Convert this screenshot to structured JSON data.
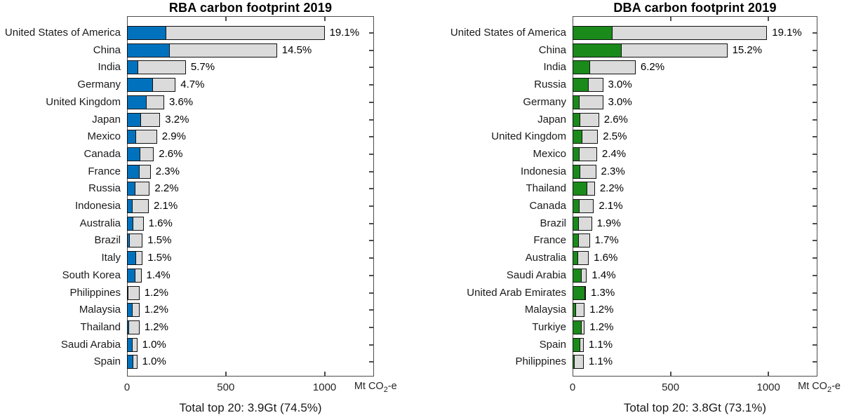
{
  "figure": {
    "background": "#ffffff",
    "bar_outline_color": "#111111",
    "remainder_fill_color": "#dbdbdb",
    "axis_color": "#4d4d4d"
  },
  "chart_data": [
    {
      "type": "bar",
      "orientation": "horizontal",
      "stacked": true,
      "title": "RBA carbon footprint 2019",
      "footer": "Total top 20: 3.9Gt (74.5%)",
      "xlabel": "Mt CO2-e",
      "xlabel_parts": [
        "Mt CO",
        "2",
        "-e"
      ],
      "xlim": [
        0,
        1250
      ],
      "x_ticks": [
        0,
        500,
        1000
      ],
      "grid": false,
      "highlight_color": "#0072BD",
      "remainder_color": "#dbdbdb",
      "series_note": "colored_mt = highlighted leading segment, total_mt = full bar length in Mt CO2-e",
      "rows": [
        {
          "label": "United States of America",
          "pct": "19.1%",
          "colored_mt": 196,
          "total_mt": 1000
        },
        {
          "label": "China",
          "pct": "14.5%",
          "colored_mt": 212,
          "total_mt": 759
        },
        {
          "label": "India",
          "pct": "5.7%",
          "colored_mt": 54,
          "total_mt": 298
        },
        {
          "label": "Germany",
          "pct": "4.7%",
          "colored_mt": 128,
          "total_mt": 246
        },
        {
          "label": "United Kingdom",
          "pct": "3.6%",
          "colored_mt": 96,
          "total_mt": 188
        },
        {
          "label": "Japan",
          "pct": "3.2%",
          "colored_mt": 68,
          "total_mt": 168
        },
        {
          "label": "Mexico",
          "pct": "2.9%",
          "colored_mt": 43,
          "total_mt": 152
        },
        {
          "label": "Canada",
          "pct": "2.6%",
          "colored_mt": 64,
          "total_mt": 136
        },
        {
          "label": "France",
          "pct": "2.3%",
          "colored_mt": 61,
          "total_mt": 120
        },
        {
          "label": "Russia",
          "pct": "2.2%",
          "colored_mt": 39,
          "total_mt": 115
        },
        {
          "label": "Indonesia",
          "pct": "2.1%",
          "colored_mt": 24,
          "total_mt": 110
        },
        {
          "label": "Australia",
          "pct": "1.6%",
          "colored_mt": 29,
          "total_mt": 84
        },
        {
          "label": "Brazil",
          "pct": "1.5%",
          "colored_mt": 12,
          "total_mt": 79
        },
        {
          "label": "Italy",
          "pct": "1.5%",
          "colored_mt": 43,
          "total_mt": 79
        },
        {
          "label": "South Korea",
          "pct": "1.4%",
          "colored_mt": 40,
          "total_mt": 73
        },
        {
          "label": "Philippines",
          "pct": "1.2%",
          "colored_mt": 5,
          "total_mt": 63
        },
        {
          "label": "Malaysia",
          "pct": "1.2%",
          "colored_mt": 25,
          "total_mt": 63
        },
        {
          "label": "Thailand",
          "pct": "1.2%",
          "colored_mt": 8,
          "total_mt": 63
        },
        {
          "label": "Saudi Arabia",
          "pct": "1.0%",
          "colored_mt": 24,
          "total_mt": 52
        },
        {
          "label": "Spain",
          "pct": "1.0%",
          "colored_mt": 28,
          "total_mt": 52
        }
      ]
    },
    {
      "type": "bar",
      "orientation": "horizontal",
      "stacked": true,
      "title": "DBA carbon footprint 2019",
      "footer": "Total top 20: 3.8Gt (73.1%)",
      "xlabel": "Mt CO2-e",
      "xlabel_parts": [
        "Mt CO",
        "2",
        "-e"
      ],
      "xlim": [
        0,
        1250
      ],
      "x_ticks": [
        0,
        500,
        1000
      ],
      "grid": false,
      "highlight_color": "#1a8a1a",
      "remainder_color": "#dbdbdb",
      "series_note": "colored_mt = highlighted leading segment, total_mt = full bar length in Mt CO2-e",
      "rows": [
        {
          "label": "United States of America",
          "pct": "19.1%",
          "colored_mt": 199,
          "total_mt": 993
        },
        {
          "label": "China",
          "pct": "15.2%",
          "colored_mt": 248,
          "total_mt": 790
        },
        {
          "label": "India",
          "pct": "6.2%",
          "colored_mt": 85,
          "total_mt": 322
        },
        {
          "label": "Russia",
          "pct": "3.0%",
          "colored_mt": 78,
          "total_mt": 156
        },
        {
          "label": "Germany",
          "pct": "3.0%",
          "colored_mt": 32,
          "total_mt": 156
        },
        {
          "label": "Japan",
          "pct": "2.6%",
          "colored_mt": 35,
          "total_mt": 135
        },
        {
          "label": "United Kingdom",
          "pct": "2.5%",
          "colored_mt": 46,
          "total_mt": 130
        },
        {
          "label": "Mexico",
          "pct": "2.4%",
          "colored_mt": 32,
          "total_mt": 125
        },
        {
          "label": "Indonesia",
          "pct": "2.3%",
          "colored_mt": 35,
          "total_mt": 120
        },
        {
          "label": "Thailand",
          "pct": "2.2%",
          "colored_mt": 71,
          "total_mt": 114
        },
        {
          "label": "Canada",
          "pct": "2.1%",
          "colored_mt": 32,
          "total_mt": 109
        },
        {
          "label": "Brazil",
          "pct": "1.9%",
          "colored_mt": 28,
          "total_mt": 99
        },
        {
          "label": "France",
          "pct": "1.7%",
          "colored_mt": 28,
          "total_mt": 88
        },
        {
          "label": "Australia",
          "pct": "1.6%",
          "colored_mt": 25,
          "total_mt": 83
        },
        {
          "label": "Saudi Arabia",
          "pct": "1.4%",
          "colored_mt": 43,
          "total_mt": 73
        },
        {
          "label": "United Arab Emirates",
          "pct": "1.3%",
          "colored_mt": 60,
          "total_mt": 68
        },
        {
          "label": "Malaysia",
          "pct": "1.2%",
          "colored_mt": 14,
          "total_mt": 62
        },
        {
          "label": "Turkiye",
          "pct": "1.2%",
          "colored_mt": 43,
          "total_mt": 62
        },
        {
          "label": "Spain",
          "pct": "1.1%",
          "colored_mt": 35,
          "total_mt": 57
        },
        {
          "label": "Philippines",
          "pct": "1.1%",
          "colored_mt": 8,
          "total_mt": 57
        }
      ]
    }
  ]
}
